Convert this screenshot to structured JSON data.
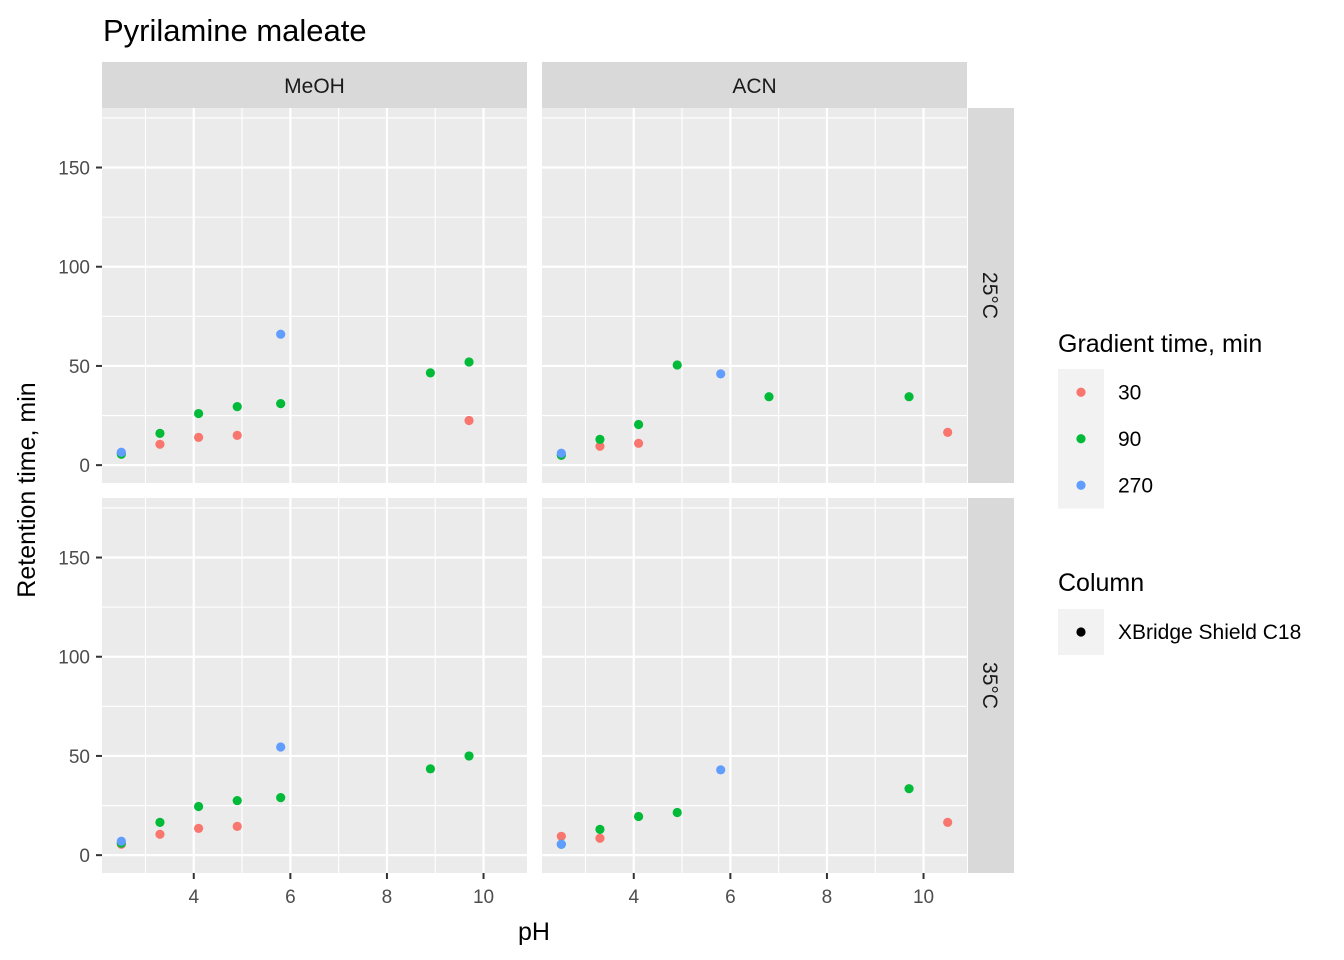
{
  "chart_data": {
    "type": "scatter",
    "title": "Pyrilamine maleate",
    "xlabel": "pH",
    "ylabel": "Retention time, min",
    "xlim": [
      2.1,
      10.9
    ],
    "ylim": [
      -9,
      180
    ],
    "x_ticks": [
      4,
      6,
      8,
      10
    ],
    "y_ticks": [
      0,
      50,
      100,
      150
    ],
    "grid": true,
    "facet_columns": [
      "MeOH",
      "ACN"
    ],
    "facet_rows": [
      "25°C",
      "35°C"
    ],
    "legend_placement": "right",
    "legend": {
      "color": {
        "title": "Gradient time, min",
        "entries": [
          {
            "label": "30",
            "color": "#F8766D"
          },
          {
            "label": "90",
            "color": "#00BA38"
          },
          {
            "label": "270",
            "color": "#619CFF"
          }
        ]
      },
      "shape": {
        "title": "Column",
        "entries": [
          {
            "label": "XBridge Shield C18",
            "color": "#000000"
          }
        ]
      }
    },
    "panels": [
      {
        "col": "MeOH",
        "row": "25°C",
        "series": [
          {
            "name": "30",
            "points": [
              [
                2.5,
                6
              ],
              [
                3.3,
                10.5
              ],
              [
                4.1,
                14
              ],
              [
                4.9,
                15
              ],
              [
                9.7,
                22.5
              ]
            ]
          },
          {
            "name": "90",
            "points": [
              [
                2.5,
                5.5
              ],
              [
                3.3,
                16
              ],
              [
                4.1,
                26
              ],
              [
                4.9,
                29.5
              ],
              [
                5.8,
                31
              ],
              [
                8.9,
                46.5
              ],
              [
                9.7,
                52
              ]
            ]
          },
          {
            "name": "270",
            "points": [
              [
                2.5,
                6.5
              ],
              [
                5.8,
                66
              ]
            ]
          }
        ]
      },
      {
        "col": "ACN",
        "row": "25°C",
        "series": [
          {
            "name": "30",
            "points": [
              [
                2.5,
                5
              ],
              [
                3.3,
                9.5
              ],
              [
                4.1,
                11
              ],
              [
                10.5,
                16.5
              ]
            ]
          },
          {
            "name": "90",
            "points": [
              [
                2.5,
                5
              ],
              [
                3.3,
                13
              ],
              [
                4.1,
                20.5
              ],
              [
                4.9,
                50.5
              ],
              [
                6.8,
                34.5
              ],
              [
                9.7,
                34.5
              ]
            ]
          },
          {
            "name": "270",
            "points": [
              [
                2.5,
                6
              ],
              [
                5.8,
                46
              ]
            ]
          }
        ]
      },
      {
        "col": "MeOH",
        "row": "35°C",
        "series": [
          {
            "name": "30",
            "points": [
              [
                2.5,
                5.5
              ],
              [
                3.3,
                10.5
              ],
              [
                4.1,
                13.5
              ],
              [
                4.9,
                14.5
              ]
            ]
          },
          {
            "name": "90",
            "points": [
              [
                2.5,
                6
              ],
              [
                3.3,
                16.5
              ],
              [
                4.1,
                24.5
              ],
              [
                4.9,
                27.5
              ],
              [
                5.8,
                29
              ],
              [
                8.9,
                43.5
              ],
              [
                9.7,
                50
              ]
            ]
          },
          {
            "name": "270",
            "points": [
              [
                2.5,
                7
              ],
              [
                5.8,
                54.5
              ]
            ]
          }
        ]
      },
      {
        "col": "ACN",
        "row": "35°C",
        "series": [
          {
            "name": "30",
            "points": [
              [
                2.5,
                9.5
              ],
              [
                3.3,
                8.5
              ],
              [
                10.5,
                16.5
              ]
            ]
          },
          {
            "name": "90",
            "points": [
              [
                2.5,
                5.5
              ],
              [
                3.3,
                13
              ],
              [
                4.1,
                19.5
              ],
              [
                4.9,
                21.5
              ],
              [
                9.7,
                33.5
              ]
            ]
          },
          {
            "name": "270",
            "points": [
              [
                2.5,
                5.5
              ],
              [
                5.8,
                43
              ]
            ]
          }
        ]
      }
    ]
  }
}
